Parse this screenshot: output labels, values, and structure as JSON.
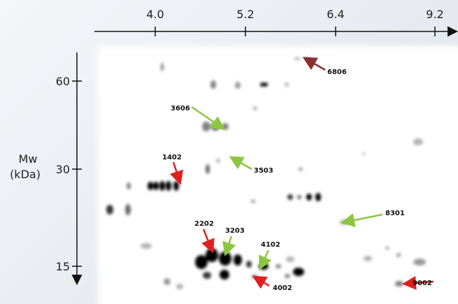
{
  "x_axis": {
    "ticks": [
      "4.0",
      "5.2",
      "6.4",
      "9.2"
    ]
  },
  "y_axis": {
    "label": [
      "Mw",
      "(kDa)"
    ],
    "ticks": [
      "60",
      "30",
      "15"
    ]
  },
  "annotations": [
    {
      "label": "6806"
    },
    {
      "label": "3606"
    },
    {
      "label": "1402"
    },
    {
      "label": "3503"
    },
    {
      "label": "8301"
    },
    {
      "label": "2202"
    },
    {
      "label": "3203"
    },
    {
      "label": "4102"
    },
    {
      "label": "4002"
    },
    {
      "label": "9002"
    }
  ]
}
